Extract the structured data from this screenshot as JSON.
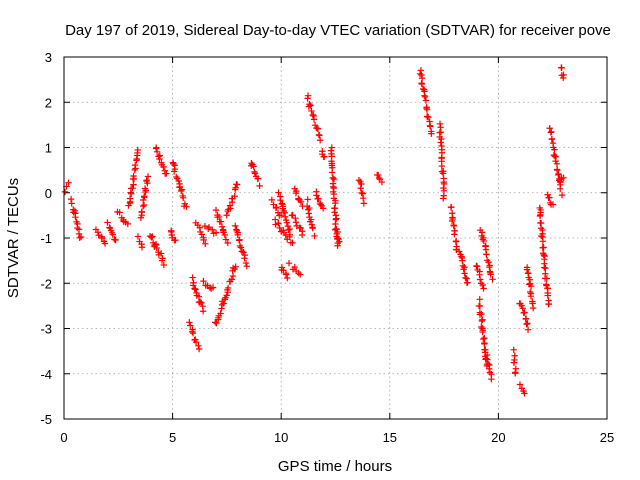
{
  "chart_data": {
    "type": "scatter",
    "title": "Day 197 of 2019, Sidereal Day-to-day VTEC variation (SDTVAR) for receiver pove",
    "xlabel": "GPS time / hours",
    "ylabel": "SDTVAR / TECUs",
    "xlim": [
      0,
      25
    ],
    "ylim": [
      -5,
      3
    ],
    "xticks": [
      0,
      5,
      10,
      15,
      20,
      25
    ],
    "yticks": [
      -5,
      -4,
      -3,
      -2,
      -1,
      0,
      1,
      2,
      3
    ],
    "grid": true,
    "marker": "+",
    "color": "#ff0000",
    "segments": [
      {
        "x": [
          0.0,
          0.2
        ],
        "y": [
          0.0,
          0.2
        ]
      },
      {
        "x": [
          0.35,
          0.75
        ],
        "y": [
          -0.2,
          -1.0
        ]
      },
      {
        "x": [
          1.5,
          1.9
        ],
        "y": [
          -0.8,
          -1.1
        ]
      },
      {
        "x": [
          2.0,
          2.4
        ],
        "y": [
          -0.7,
          -1.1
        ]
      },
      {
        "x": [
          2.5,
          2.9
        ],
        "y": [
          -0.4,
          -0.7
        ]
      },
      {
        "x": [
          3.0,
          3.4
        ],
        "y": [
          -0.3,
          0.95
        ]
      },
      {
        "x": [
          3.4,
          3.6
        ],
        "y": [
          -1.0,
          -1.2
        ]
      },
      {
        "x": [
          3.55,
          3.85
        ],
        "y": [
          -0.6,
          0.4
        ]
      },
      {
        "x": [
          4.0,
          4.2
        ],
        "y": [
          -0.9,
          -1.2
        ]
      },
      {
        "x": [
          4.2,
          4.6
        ],
        "y": [
          -1.1,
          -1.55
        ]
      },
      {
        "x": [
          4.2,
          4.7
        ],
        "y": [
          1.0,
          0.4
        ]
      },
      {
        "x": [
          4.9,
          5.1
        ],
        "y": [
          -0.8,
          -1.1
        ]
      },
      {
        "x": [
          5.0,
          5.6
        ],
        "y": [
          0.7,
          -0.3
        ]
      },
      {
        "x": [
          5.8,
          6.2
        ],
        "y": [
          -2.9,
          -3.45
        ]
      },
      {
        "x": [
          5.9,
          6.4
        ],
        "y": [
          -1.9,
          -2.6
        ]
      },
      {
        "x": [
          6.1,
          6.5
        ],
        "y": [
          -0.7,
          -1.1
        ]
      },
      {
        "x": [
          6.4,
          6.9
        ],
        "y": [
          -1.95,
          -2.15
        ]
      },
      {
        "x": [
          6.5,
          7.0
        ],
        "y": [
          -0.7,
          -0.9
        ]
      },
      {
        "x": [
          7.0,
          7.5
        ],
        "y": [
          -0.4,
          -1.1
        ]
      },
      {
        "x": [
          7.0,
          7.9
        ],
        "y": [
          -2.9,
          -1.6
        ]
      },
      {
        "x": [
          7.5,
          8.0
        ],
        "y": [
          -0.5,
          0.2
        ]
      },
      {
        "x": [
          7.9,
          8.4
        ],
        "y": [
          -0.7,
          -1.6
        ]
      },
      {
        "x": [
          8.6,
          9.0
        ],
        "y": [
          0.7,
          0.2
        ]
      },
      {
        "x": [
          9.6,
          10.0
        ],
        "y": [
          -0.2,
          -0.5
        ]
      },
      {
        "x": [
          9.7,
          10.5
        ],
        "y": [
          -0.6,
          -1.1
        ]
      },
      {
        "x": [
          9.9,
          10.4
        ],
        "y": [
          0.0,
          -0.9
        ]
      },
      {
        "x": [
          10.0,
          10.3
        ],
        "y": [
          -1.6,
          -1.9
        ]
      },
      {
        "x": [
          10.4,
          10.9
        ],
        "y": [
          -1.6,
          -1.8
        ]
      },
      {
        "x": [
          10.5,
          11.0
        ],
        "y": [
          -0.5,
          -0.9
        ]
      },
      {
        "x": [
          10.6,
          11.0
        ],
        "y": [
          0.1,
          -0.3
        ]
      },
      {
        "x": [
          11.2,
          11.5
        ],
        "y": [
          -0.2,
          -0.9
        ]
      },
      {
        "x": [
          11.2,
          11.8
        ],
        "y": [
          2.1,
          1.2
        ]
      },
      {
        "x": [
          11.6,
          11.9
        ],
        "y": [
          0.0,
          -0.4
        ]
      },
      {
        "x": [
          11.9,
          12.0
        ],
        "y": [
          0.9,
          0.8
        ]
      },
      {
        "x": [
          12.3,
          12.6
        ],
        "y": [
          1.0,
          -1.2
        ]
      },
      {
        "x": [
          12.5,
          12.7
        ],
        "y": [
          -0.8,
          -1.1
        ]
      },
      {
        "x": [
          13.6,
          13.8
        ],
        "y": [
          0.3,
          -0.2
        ]
      },
      {
        "x": [
          14.4,
          14.6
        ],
        "y": [
          0.45,
          0.2
        ]
      },
      {
        "x": [
          16.4,
          16.9
        ],
        "y": [
          2.7,
          1.3
        ]
      },
      {
        "x": [
          17.3,
          17.5
        ],
        "y": [
          1.5,
          -0.1
        ]
      },
      {
        "x": [
          17.8,
          18.1
        ],
        "y": [
          -0.3,
          -1.3
        ]
      },
      {
        "x": [
          18.2,
          18.6
        ],
        "y": [
          -1.3,
          -2.0
        ]
      },
      {
        "x": [
          19.0,
          19.3
        ],
        "y": [
          -1.6,
          -2.1
        ]
      },
      {
        "x": [
          19.1,
          19.5
        ],
        "y": [
          -2.4,
          -3.8
        ]
      },
      {
        "x": [
          19.2,
          19.7
        ],
        "y": [
          -0.8,
          -1.9
        ]
      },
      {
        "x": [
          19.4,
          19.7
        ],
        "y": [
          -3.6,
          -4.1
        ]
      },
      {
        "x": [
          20.7,
          20.8
        ],
        "y": [
          -3.5,
          -4.0
        ]
      },
      {
        "x": [
          21.0,
          21.2
        ],
        "y": [
          -4.2,
          -4.4
        ]
      },
      {
        "x": [
          21.0,
          21.4
        ],
        "y": [
          -2.4,
          -3.0
        ]
      },
      {
        "x": [
          21.3,
          21.6
        ],
        "y": [
          -1.6,
          -2.5
        ]
      },
      {
        "x": [
          21.9,
          22.3
        ],
        "y": [
          -0.3,
          -2.5
        ]
      },
      {
        "x": [
          22.4,
          22.9
        ],
        "y": [
          1.4,
          0.0
        ]
      },
      {
        "x": [
          22.3,
          22.5
        ],
        "y": [
          0.0,
          -0.3
        ]
      },
      {
        "x": [
          22.9,
          23.0
        ],
        "y": [
          2.8,
          2.5
        ]
      },
      {
        "x": [
          22.8,
          23.0
        ],
        "y": [
          0.3,
          0.3
        ]
      }
    ]
  }
}
